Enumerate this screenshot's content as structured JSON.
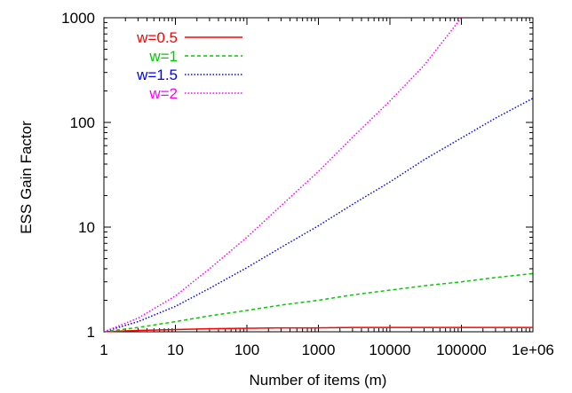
{
  "chart_data": {
    "type": "line",
    "title": "",
    "xlabel": "Number of items (m)",
    "ylabel": "ESS Gain Factor",
    "x_scale": "log",
    "y_scale": "log",
    "xlim": [
      1,
      1000000
    ],
    "ylim": [
      1,
      1000
    ],
    "x_ticks": [
      1,
      10,
      100,
      1000,
      10000,
      100000,
      1000000
    ],
    "x_tick_labels": [
      "1",
      "10",
      "100",
      "1000",
      "10000",
      "100000",
      "1e+06"
    ],
    "y_ticks": [
      1,
      10,
      100,
      1000
    ],
    "y_tick_labels": [
      "1",
      "10",
      "100",
      "1000"
    ],
    "grid": false,
    "legend_position": "top-left",
    "x": [
      1,
      3,
      10,
      30,
      100,
      300,
      1000,
      3000,
      10000,
      30000,
      100000,
      300000,
      1000000
    ],
    "series": [
      {
        "name": "w=0.5",
        "color": "#ff0000",
        "dash": "solid",
        "values": [
          1.0,
          1.03,
          1.05,
          1.07,
          1.08,
          1.09,
          1.09,
          1.1,
          1.1,
          1.1,
          1.1,
          1.1,
          1.1
        ]
      },
      {
        "name": "w=1",
        "color": "#00cc00",
        "dash": "dashed",
        "values": [
          1.0,
          1.1,
          1.25,
          1.42,
          1.6,
          1.8,
          2.0,
          2.25,
          2.5,
          2.75,
          3.0,
          3.3,
          3.6
        ]
      },
      {
        "name": "w=1.5",
        "color": "#0000ff",
        "dash": "dotted",
        "values": [
          1.0,
          1.25,
          1.75,
          2.6,
          4.1,
          6.4,
          10.3,
          16.5,
          27,
          44,
          71,
          110,
          170
        ]
      },
      {
        "name": "w=2",
        "color": "#ff00ff",
        "dash": "dotted",
        "values": [
          1.0,
          1.35,
          2.2,
          4.0,
          8.0,
          16,
          34,
          72,
          160,
          350,
          1000,
          null,
          null
        ]
      }
    ]
  }
}
